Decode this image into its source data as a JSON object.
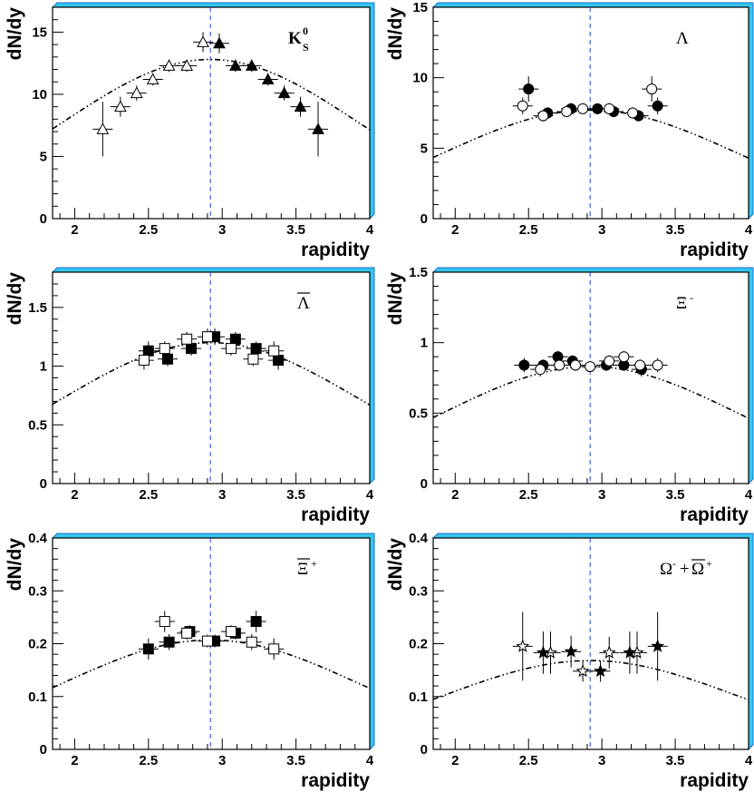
{
  "chart_data": [
    {
      "type": "scatter",
      "label": "K",
      "label_sub": "S",
      "label_sup": "0",
      "xlabel": "rapidity",
      "ylabel": "dN/dy",
      "xlim": [
        1.85,
        4.0
      ],
      "ylim": [
        0,
        17
      ],
      "xticks": [
        "2",
        "2.5",
        "3",
        "3.5",
        "4"
      ],
      "yticks": [
        "0",
        "5",
        "10",
        "15"
      ],
      "ytick_values": [
        0,
        5,
        10,
        15
      ],
      "midrapidity": 2.92,
      "fit_curve": {
        "peak_y": 12.8,
        "center": 2.92,
        "sigma": 1.0
      },
      "series": [
        {
          "marker": "triangle-open",
          "points": [
            {
              "x": 2.19,
              "y": 7.2,
              "err": 2.2
            },
            {
              "x": 2.31,
              "y": 9.0,
              "err": 0.8
            },
            {
              "x": 2.42,
              "y": 10.1,
              "err": 0.6
            },
            {
              "x": 2.53,
              "y": 11.2,
              "err": 0.5
            },
            {
              "x": 2.64,
              "y": 12.3,
              "err": 0.5
            },
            {
              "x": 2.76,
              "y": 12.3,
              "err": 0.5
            },
            {
              "x": 2.87,
              "y": 14.2,
              "err": 0.8
            }
          ]
        },
        {
          "marker": "triangle-filled",
          "points": [
            {
              "x": 2.98,
              "y": 14.1,
              "err": 0.8
            },
            {
              "x": 3.09,
              "y": 12.3,
              "err": 0.5
            },
            {
              "x": 3.2,
              "y": 12.3,
              "err": 0.5
            },
            {
              "x": 3.31,
              "y": 11.2,
              "err": 0.5
            },
            {
              "x": 3.42,
              "y": 10.1,
              "err": 0.6
            },
            {
              "x": 3.53,
              "y": 9.0,
              "err": 0.8
            },
            {
              "x": 3.65,
              "y": 7.2,
              "err": 2.2
            }
          ]
        }
      ]
    },
    {
      "type": "scatter",
      "label": "Λ",
      "label_sub": "",
      "label_sup": "",
      "xlabel": "rapidity",
      "ylabel": "dN/dy",
      "xlim": [
        1.85,
        4.0
      ],
      "ylim": [
        0,
        15
      ],
      "xticks": [
        "2",
        "2.5",
        "3",
        "3.5",
        "4"
      ],
      "yticks": [
        "0",
        "5",
        "10",
        "15"
      ],
      "ytick_values": [
        0,
        5,
        10,
        15
      ],
      "midrapidity": 2.92,
      "fit_curve": {
        "peak_y": 7.7,
        "center": 2.92,
        "sigma": 1.0
      },
      "series": [
        {
          "marker": "circle-filled",
          "points": [
            {
              "x": 2.5,
              "y": 9.2,
              "err": 0.9
            },
            {
              "x": 2.63,
              "y": 7.5,
              "err": 0.4
            },
            {
              "x": 2.79,
              "y": 7.8,
              "err": 0.4
            },
            {
              "x": 2.97,
              "y": 7.8,
              "err": 0.3
            },
            {
              "x": 3.08,
              "y": 7.6,
              "err": 0.4
            },
            {
              "x": 3.25,
              "y": 7.3,
              "err": 0.4
            },
            {
              "x": 3.38,
              "y": 8.0,
              "err": 0.6
            }
          ]
        },
        {
          "marker": "circle-open",
          "points": [
            {
              "x": 2.46,
              "y": 8.0,
              "err": 0.6
            },
            {
              "x": 2.6,
              "y": 7.3,
              "err": 0.4
            },
            {
              "x": 2.76,
              "y": 7.6,
              "err": 0.4
            },
            {
              "x": 2.87,
              "y": 7.8,
              "err": 0.3
            },
            {
              "x": 3.05,
              "y": 7.8,
              "err": 0.4
            },
            {
              "x": 3.21,
              "y": 7.5,
              "err": 0.4
            },
            {
              "x": 3.34,
              "y": 9.2,
              "err": 0.9
            }
          ]
        }
      ]
    },
    {
      "type": "scatter",
      "label": "Λ",
      "label_bar": true,
      "label_sub": "",
      "label_sup": "",
      "xlabel": "rapidity",
      "ylabel": "dN/dy",
      "xlim": [
        1.85,
        4.0
      ],
      "ylim": [
        0,
        1.8
      ],
      "xticks": [
        "2",
        "2.5",
        "3",
        "3.5",
        "4"
      ],
      "yticks": [
        "0",
        "0.5",
        "1",
        "1.5"
      ],
      "ytick_values": [
        0,
        0.5,
        1,
        1.5
      ],
      "midrapidity": 2.92,
      "fit_curve": {
        "peak_y": 1.2,
        "center": 2.92,
        "sigma": 1.0
      },
      "series": [
        {
          "marker": "square-filled",
          "points": [
            {
              "x": 2.5,
              "y": 1.13,
              "err": 0.08
            },
            {
              "x": 2.63,
              "y": 1.06,
              "err": 0.06
            },
            {
              "x": 2.79,
              "y": 1.15,
              "err": 0.06
            },
            {
              "x": 2.95,
              "y": 1.25,
              "err": 0.07
            },
            {
              "x": 3.09,
              "y": 1.23,
              "err": 0.06
            },
            {
              "x": 3.23,
              "y": 1.15,
              "err": 0.06
            },
            {
              "x": 3.38,
              "y": 1.05,
              "err": 0.08
            }
          ]
        },
        {
          "marker": "square-open",
          "points": [
            {
              "x": 2.47,
              "y": 1.05,
              "err": 0.08
            },
            {
              "x": 2.61,
              "y": 1.15,
              "err": 0.06
            },
            {
              "x": 2.76,
              "y": 1.23,
              "err": 0.06
            },
            {
              "x": 2.9,
              "y": 1.25,
              "err": 0.07
            },
            {
              "x": 3.06,
              "y": 1.15,
              "err": 0.06
            },
            {
              "x": 3.21,
              "y": 1.06,
              "err": 0.06
            },
            {
              "x": 3.35,
              "y": 1.13,
              "err": 0.08
            }
          ]
        }
      ]
    },
    {
      "type": "scatter",
      "label": "Ξ",
      "label_sub": "",
      "label_sup": "-",
      "xlabel": "rapidity",
      "ylabel": "dN/dy",
      "xlim": [
        1.85,
        4.0
      ],
      "ylim": [
        0,
        1.5
      ],
      "xticks": [
        "2",
        "2.5",
        "3",
        "3.5",
        "4"
      ],
      "yticks": [
        "0",
        "0.5",
        "1",
        "1.5"
      ],
      "ytick_values": [
        0,
        0.5,
        1,
        1.5
      ],
      "midrapidity": 2.92,
      "fit_curve": {
        "peak_y": 0.83,
        "center": 2.92,
        "sigma": 1.0
      },
      "series": [
        {
          "marker": "circle-filled",
          "points": [
            {
              "x": 2.47,
              "y": 0.84,
              "err": 0.05
            },
            {
              "x": 2.6,
              "y": 0.84,
              "err": 0.04
            },
            {
              "x": 2.7,
              "y": 0.9,
              "err": 0.04
            },
            {
              "x": 2.8,
              "y": 0.87,
              "err": 0.04
            },
            {
              "x": 3.03,
              "y": 0.84,
              "err": 0.04
            },
            {
              "x": 3.15,
              "y": 0.84,
              "err": 0.04
            },
            {
              "x": 3.27,
              "y": 0.81,
              "err": 0.05
            }
          ]
        },
        {
          "marker": "circle-open",
          "points": [
            {
              "x": 2.58,
              "y": 0.81,
              "err": 0.05
            },
            {
              "x": 2.71,
              "y": 0.84,
              "err": 0.04
            },
            {
              "x": 2.82,
              "y": 0.84,
              "err": 0.04
            },
            {
              "x": 2.92,
              "y": 0.83,
              "err": 0.04
            },
            {
              "x": 3.05,
              "y": 0.87,
              "err": 0.04
            },
            {
              "x": 3.15,
              "y": 0.9,
              "err": 0.04
            },
            {
              "x": 3.26,
              "y": 0.84,
              "err": 0.04
            },
            {
              "x": 3.38,
              "y": 0.84,
              "err": 0.05
            }
          ]
        }
      ]
    },
    {
      "type": "scatter",
      "label": "Ξ",
      "label_bar": true,
      "label_sub": "",
      "label_sup": "+",
      "xlabel": "rapidity",
      "ylabel": "dN/dy",
      "xlim": [
        1.85,
        4.0
      ],
      "ylim": [
        0,
        0.4
      ],
      "xticks": [
        "2",
        "2.5",
        "3",
        "3.5",
        "4"
      ],
      "yticks": [
        "0",
        "0.1",
        "0.2",
        "0.3",
        "0.4"
      ],
      "ytick_values": [
        0,
        0.1,
        0.2,
        0.3,
        0.4
      ],
      "midrapidity": 2.92,
      "fit_curve": {
        "peak_y": 0.207,
        "center": 2.92,
        "sigma": 1.0
      },
      "series": [
        {
          "marker": "square-filled",
          "points": [
            {
              "x": 2.5,
              "y": 0.19,
              "err": 0.02
            },
            {
              "x": 2.64,
              "y": 0.203,
              "err": 0.015
            },
            {
              "x": 2.78,
              "y": 0.223,
              "err": 0.012
            },
            {
              "x": 2.95,
              "y": 0.205,
              "err": 0.012
            },
            {
              "x": 3.09,
              "y": 0.22,
              "err": 0.012
            },
            {
              "x": 3.23,
              "y": 0.242,
              "err": 0.02
            }
          ]
        },
        {
          "marker": "square-open",
          "points": [
            {
              "x": 2.61,
              "y": 0.242,
              "err": 0.02
            },
            {
              "x": 2.76,
              "y": 0.22,
              "err": 0.012
            },
            {
              "x": 2.9,
              "y": 0.205,
              "err": 0.012
            },
            {
              "x": 3.06,
              "y": 0.223,
              "err": 0.012
            },
            {
              "x": 3.2,
              "y": 0.203,
              "err": 0.015
            },
            {
              "x": 3.35,
              "y": 0.19,
              "err": 0.02
            }
          ]
        }
      ]
    },
    {
      "type": "scatter",
      "label": "Ω",
      "label_sub": "",
      "label_sup": "-",
      "label_plus": "+",
      "label2": "Ω",
      "label2_bar": true,
      "label2_sup": "+",
      "xlabel": "rapidity",
      "ylabel": "dN/dy",
      "xlim": [
        1.85,
        4.0
      ],
      "ylim": [
        0,
        0.4
      ],
      "xticks": [
        "2",
        "2.5",
        "3",
        "3.5",
        "4"
      ],
      "yticks": [
        "0",
        "0.1",
        "0.2",
        "0.3",
        "0.4"
      ],
      "ytick_values": [
        0,
        0.1,
        0.2,
        0.3,
        0.4
      ],
      "midrapidity": 2.92,
      "fit_curve": {
        "peak_y": 0.168,
        "center": 2.92,
        "sigma": 1.0
      },
      "series": [
        {
          "marker": "star-open",
          "points": [
            {
              "x": 2.46,
              "y": 0.195,
              "err": 0.065
            },
            {
              "x": 2.65,
              "y": 0.183,
              "err": 0.04
            },
            {
              "x": 2.87,
              "y": 0.148,
              "err": 0.02
            },
            {
              "x": 3.05,
              "y": 0.183,
              "err": 0.03
            },
            {
              "x": 3.24,
              "y": 0.183,
              "err": 0.04
            }
          ]
        },
        {
          "marker": "star-filled",
          "points": [
            {
              "x": 2.6,
              "y": 0.183,
              "err": 0.04
            },
            {
              "x": 2.79,
              "y": 0.185,
              "err": 0.03
            },
            {
              "x": 2.99,
              "y": 0.148,
              "err": 0.02
            },
            {
              "x": 3.19,
              "y": 0.183,
              "err": 0.04
            },
            {
              "x": 3.38,
              "y": 0.195,
              "err": 0.065
            }
          ]
        }
      ]
    }
  ]
}
